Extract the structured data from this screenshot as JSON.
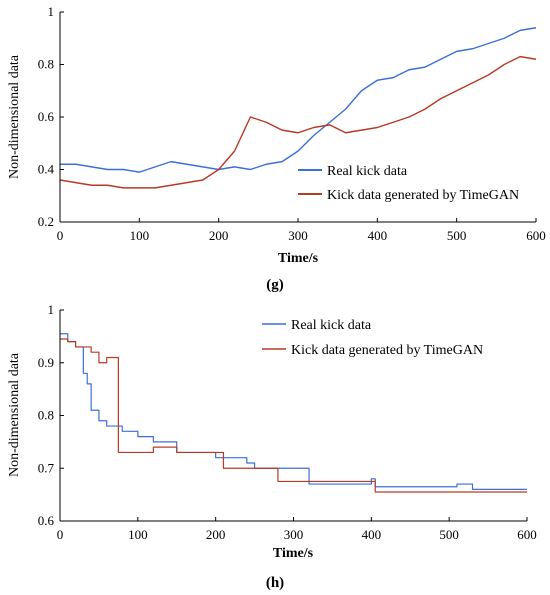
{
  "colors": {
    "real": "#3b6fd8",
    "generated": "#b83a25"
  },
  "chart_data": [
    {
      "type": "line",
      "panel_label": "(g)",
      "xlabel": "Time/s",
      "ylabel": "Non-dimensional data",
      "xlim": [
        0,
        600
      ],
      "ylim": [
        0.2,
        1
      ],
      "xticks": [
        "0",
        "100",
        "200",
        "300",
        "400",
        "500",
        "600"
      ],
      "yticks": [
        "0.2",
        "0.4",
        "0.6",
        "0.8",
        "1"
      ],
      "legend_position": "right-center",
      "series": [
        {
          "name": "Real kick data",
          "color": "#3b6fd8",
          "x": [
            0,
            20,
            40,
            60,
            80,
            100,
            120,
            140,
            160,
            180,
            200,
            220,
            240,
            260,
            280,
            300,
            320,
            340,
            360,
            380,
            400,
            420,
            440,
            460,
            480,
            500,
            520,
            540,
            560,
            580,
            600
          ],
          "y": [
            0.42,
            0.42,
            0.41,
            0.4,
            0.4,
            0.39,
            0.41,
            0.43,
            0.42,
            0.41,
            0.4,
            0.41,
            0.4,
            0.42,
            0.43,
            0.47,
            0.53,
            0.58,
            0.63,
            0.7,
            0.74,
            0.75,
            0.78,
            0.79,
            0.82,
            0.85,
            0.86,
            0.88,
            0.9,
            0.93,
            0.94
          ]
        },
        {
          "name": "Kick data generated by TimeGAN",
          "color": "#b83a25",
          "x": [
            0,
            20,
            40,
            60,
            80,
            100,
            120,
            140,
            160,
            180,
            200,
            220,
            240,
            260,
            280,
            300,
            320,
            340,
            360,
            380,
            400,
            420,
            440,
            460,
            480,
            500,
            520,
            540,
            560,
            580,
            600
          ],
          "y": [
            0.36,
            0.35,
            0.34,
            0.34,
            0.33,
            0.33,
            0.33,
            0.34,
            0.35,
            0.36,
            0.4,
            0.47,
            0.6,
            0.58,
            0.55,
            0.54,
            0.56,
            0.57,
            0.54,
            0.55,
            0.56,
            0.58,
            0.6,
            0.63,
            0.67,
            0.7,
            0.73,
            0.76,
            0.8,
            0.83,
            0.82
          ]
        }
      ]
    },
    {
      "type": "line",
      "panel_label": "(h)",
      "xlabel": "Time/s",
      "ylabel": "Non-dimensional data",
      "xlim": [
        0,
        600
      ],
      "ylim": [
        0.6,
        1
      ],
      "xticks": [
        "0",
        "100",
        "200",
        "300",
        "400",
        "500",
        "600"
      ],
      "yticks": [
        "0.6",
        "0.7",
        "0.8",
        "0.9",
        "1"
      ],
      "legend_position": "top-right",
      "series": [
        {
          "name": "Real kick data",
          "color": "#3b6fd8",
          "x": [
            0,
            10,
            20,
            30,
            35,
            40,
            50,
            60,
            80,
            100,
            120,
            150,
            200,
            240,
            250,
            320,
            400,
            405,
            500,
            510,
            530,
            590,
            600
          ],
          "y": [
            0.955,
            0.94,
            0.93,
            0.88,
            0.86,
            0.81,
            0.79,
            0.78,
            0.77,
            0.76,
            0.75,
            0.73,
            0.72,
            0.71,
            0.7,
            0.67,
            0.68,
            0.665,
            0.665,
            0.67,
            0.66,
            0.66,
            0.66
          ]
        },
        {
          "name": "Kick data generated by TimeGAN",
          "color": "#b83a25",
          "x": [
            0,
            10,
            20,
            30,
            40,
            50,
            60,
            70,
            75,
            100,
            120,
            150,
            200,
            210,
            270,
            280,
            400,
            405,
            500,
            600
          ],
          "y": [
            0.945,
            0.94,
            0.93,
            0.93,
            0.92,
            0.9,
            0.91,
            0.91,
            0.73,
            0.73,
            0.74,
            0.73,
            0.73,
            0.7,
            0.7,
            0.675,
            0.675,
            0.655,
            0.655,
            0.655
          ]
        }
      ]
    }
  ]
}
